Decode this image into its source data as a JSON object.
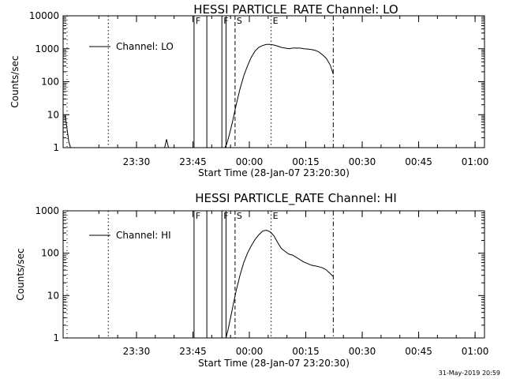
{
  "footer": {
    "timestamp": "31-May-2019 20:59"
  },
  "chart_data": [
    {
      "type": "line",
      "title": "HESSI PARTICLE_RATE Channel: LO",
      "xlabel": "Start Time (28-Jan-07 23:20:30)",
      "ylabel": "Counts/sec",
      "yscale": "log",
      "ylim": [
        1,
        10000
      ],
      "xlim_minutes": [
        -10,
        102
      ],
      "x_tick_labels": [
        "23:30",
        "23:45",
        "00:00",
        "00:15",
        "00:30",
        "00:45",
        "01:00"
      ],
      "y_tick_labels": [
        "1",
        "10",
        "100",
        "1000",
        "10000"
      ],
      "legend": "Channel: LO",
      "legend_position": "top-left",
      "series": [
        {
          "name": "Channel: LO",
          "points": [
            [
              -9.5,
              10
            ],
            [
              -9.0,
              4
            ],
            [
              -8.5,
              1.5
            ],
            [
              -8.0,
              1
            ],
            [
              33.0,
              1
            ],
            [
              33.5,
              1.3
            ],
            [
              34.2,
              2.5
            ],
            [
              35,
              6
            ],
            [
              36,
              20
            ],
            [
              37,
              60
            ],
            [
              38,
              150
            ],
            [
              39,
              300
            ],
            [
              40,
              550
            ],
            [
              41,
              850
            ],
            [
              42,
              1100
            ],
            [
              43,
              1250
            ],
            [
              44,
              1350
            ],
            [
              45,
              1350
            ],
            [
              46,
              1300
            ],
            [
              47,
              1200
            ],
            [
              48,
              1100
            ],
            [
              49,
              1050
            ],
            [
              50,
              1000
            ],
            [
              51,
              1050
            ],
            [
              52,
              1050
            ],
            [
              53,
              1050
            ],
            [
              54,
              1000
            ],
            [
              55,
              980
            ],
            [
              56,
              950
            ],
            [
              57,
              900
            ],
            [
              58,
              800
            ],
            [
              59,
              650
            ],
            [
              60,
              500
            ],
            [
              61,
              320
            ],
            [
              61.8,
              170
            ]
          ],
          "spike": [
            [
              17.0,
              1
            ],
            [
              17.5,
              1.8
            ],
            [
              18.0,
              1
            ]
          ]
        }
      ],
      "markers": [
        {
          "kind": "dotted",
          "x": 2,
          "label": ""
        },
        {
          "kind": "solid",
          "x": 24.8,
          "label": "F"
        },
        {
          "kind": "solid",
          "x": 28.2,
          "label": ""
        },
        {
          "kind": "solid",
          "x": 32.2,
          "label": "F"
        },
        {
          "kind": "solid",
          "x": 33.3,
          "label": ""
        },
        {
          "kind": "dashed",
          "x": 35.7,
          "label": "S"
        },
        {
          "kind": "dotted",
          "x": 45.3,
          "label": "E"
        },
        {
          "kind": "dashdot",
          "x": 61.8,
          "label": ""
        }
      ]
    },
    {
      "type": "line",
      "title": "HESSI PARTICLE_RATE Channel: HI",
      "xlabel": "Start Time (28-Jan-07 23:20:30)",
      "ylabel": "Counts/sec",
      "yscale": "log",
      "ylim": [
        1,
        1000
      ],
      "xlim_minutes": [
        -10,
        102
      ],
      "x_tick_labels": [
        "23:30",
        "23:45",
        "00:00",
        "00:15",
        "00:30",
        "00:45",
        "01:00"
      ],
      "y_tick_labels": [
        "1",
        "10",
        "100",
        "1000"
      ],
      "legend": "Channel: HI",
      "legend_position": "top-left",
      "series": [
        {
          "name": "Channel: HI",
          "points": [
            [
              33.3,
              1
            ],
            [
              33.8,
              1.5
            ],
            [
              34.5,
              3
            ],
            [
              35.2,
              6
            ],
            [
              36,
              13
            ],
            [
              37,
              30
            ],
            [
              38,
              60
            ],
            [
              39,
              100
            ],
            [
              40,
              150
            ],
            [
              41,
              210
            ],
            [
              42,
              270
            ],
            [
              43,
              330
            ],
            [
              44,
              350
            ],
            [
              45,
              320
            ],
            [
              46,
              260
            ],
            [
              47,
              180
            ],
            [
              48,
              130
            ],
            [
              49,
              110
            ],
            [
              50,
              95
            ],
            [
              51,
              90
            ],
            [
              52,
              80
            ],
            [
              53,
              70
            ],
            [
              54,
              62
            ],
            [
              55,
              57
            ],
            [
              56,
              52
            ],
            [
              57,
              50
            ],
            [
              58,
              48
            ],
            [
              59,
              45
            ],
            [
              60,
              40
            ],
            [
              61,
              33
            ],
            [
              61.8,
              28
            ]
          ]
        }
      ],
      "markers": [
        {
          "kind": "dotted",
          "x": 2,
          "label": ""
        },
        {
          "kind": "solid",
          "x": 24.8,
          "label": "F"
        },
        {
          "kind": "solid",
          "x": 28.2,
          "label": ""
        },
        {
          "kind": "solid",
          "x": 32.2,
          "label": "F"
        },
        {
          "kind": "solid",
          "x": 33.3,
          "label": ""
        },
        {
          "kind": "dashed",
          "x": 35.7,
          "label": "S"
        },
        {
          "kind": "dotted",
          "x": 45.3,
          "label": "E"
        },
        {
          "kind": "dashdot",
          "x": 61.8,
          "label": ""
        }
      ]
    }
  ]
}
